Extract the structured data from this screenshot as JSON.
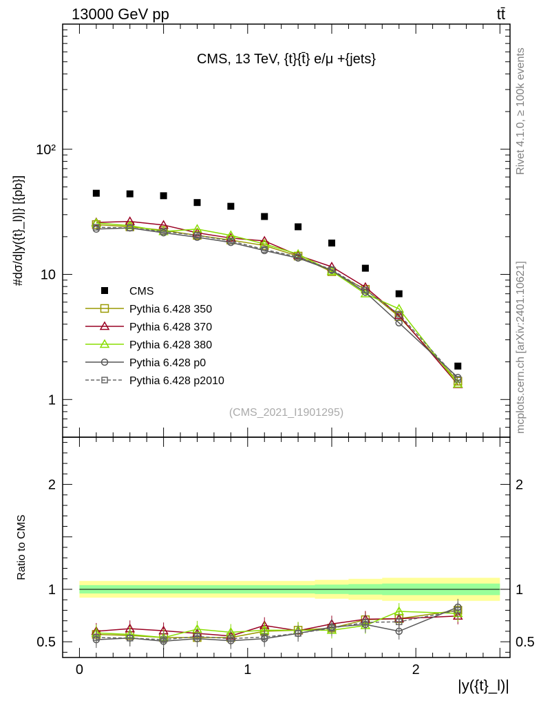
{
  "header": {
    "left": "13000 GeV pp",
    "right": "tt̄"
  },
  "side_labels": {
    "rivet": "Rivet 4.1.0, ≥ 100k events",
    "mcplots": "mcplots.cern.ch [arXiv:2401.10621]"
  },
  "chart_data": [
    {
      "type": "scatter",
      "panel": "main",
      "title": "CMS, 13 TeV, {t}{t̄} e/μ +{jets}",
      "ylabel": "#dσ/d|y({t}_l)|} [{pb}]",
      "yscale": "log",
      "ylim": [
        0.5,
        1000
      ],
      "yticks": [
        {
          "value": 1,
          "label": "1"
        },
        {
          "value": 10,
          "label": "10"
        },
        {
          "value": 100,
          "label": "10²"
        }
      ],
      "xlim": [
        -0.1,
        2.56
      ],
      "watermark": "(CMS_2021_I1901295)",
      "x": [
        0.1,
        0.3,
        0.5,
        0.7,
        0.9,
        1.1,
        1.3,
        1.5,
        1.7,
        1.9,
        2.25
      ],
      "series": [
        {
          "name": "CMS",
          "color": "#000000",
          "marker": "filled-square",
          "values": [
            44.5,
            44.0,
            42.5,
            37.5,
            35.0,
            29.0,
            24.0,
            17.8,
            11.2,
            7.0,
            1.85
          ]
        },
        {
          "name": "Pythia 6.428 350",
          "color": "#999900",
          "marker": "open-square",
          "values": [
            25.0,
            24.0,
            22.5,
            20.5,
            18.8,
            17.0,
            14.0,
            10.5,
            7.6,
            4.6,
            1.4
          ]
        },
        {
          "name": "Pythia 6.428 370",
          "color": "#990022",
          "marker": "open-triangle",
          "values": [
            26.0,
            26.5,
            24.8,
            21.5,
            19.5,
            18.5,
            14.2,
            11.5,
            7.9,
            4.7,
            1.32
          ]
        },
        {
          "name": "Pythia 6.428 380",
          "color": "#88dd00",
          "marker": "open-triangle",
          "values": [
            25.8,
            24.5,
            22.0,
            23.0,
            20.5,
            17.5,
            14.5,
            10.6,
            7.0,
            5.3,
            1.33
          ]
        },
        {
          "name": "Pythia 6.428 p0",
          "color": "#555555",
          "marker": "open-circle",
          "values": [
            23.0,
            23.5,
            21.5,
            19.8,
            18.0,
            15.5,
            13.5,
            10.8,
            7.2,
            4.1,
            1.5
          ]
        },
        {
          "name": "Pythia 6.428 p2010",
          "color": "#666666",
          "marker": "open-square-dashed",
          "values": [
            23.8,
            23.5,
            22.0,
            20.5,
            18.5,
            15.8,
            13.8,
            10.9,
            7.5,
            4.8,
            1.45
          ]
        }
      ]
    },
    {
      "type": "line",
      "panel": "ratio",
      "ylabel": "Ratio to CMS",
      "ylim": [
        0.35,
        2.45
      ],
      "yticks": [
        {
          "value": 0.5,
          "label": "0.5"
        },
        {
          "value": 1,
          "label": "1"
        },
        {
          "value": 2,
          "label": "2"
        }
      ],
      "xlim": [
        -0.1,
        2.56
      ],
      "xticks": [
        {
          "value": 0,
          "label": "0"
        },
        {
          "value": 1,
          "label": "1"
        },
        {
          "value": 2,
          "label": "2"
        }
      ],
      "xlabel": "|y({t}_l)|",
      "bin_edges": [
        0.0,
        0.2,
        0.4,
        0.6,
        0.8,
        1.0,
        1.2,
        1.4,
        1.6,
        1.8,
        2.0,
        2.5
      ],
      "band_inner_halfwidth": [
        0.04,
        0.04,
        0.04,
        0.04,
        0.04,
        0.04,
        0.04,
        0.045,
        0.05,
        0.055,
        0.055
      ],
      "band_outer_halfwidth": [
        0.08,
        0.08,
        0.08,
        0.08,
        0.08,
        0.08,
        0.08,
        0.09,
        0.1,
        0.11,
        0.11
      ],
      "x": [
        0.1,
        0.3,
        0.5,
        0.7,
        0.9,
        1.1,
        1.3,
        1.5,
        1.7,
        1.9,
        2.25
      ],
      "series": [
        {
          "name": "Pythia 6.428 350",
          "color": "#999900",
          "marker": "open-square",
          "values": [
            0.57,
            0.56,
            0.54,
            0.54,
            0.54,
            0.6,
            0.61,
            0.63,
            0.71,
            0.72,
            0.8
          ]
        },
        {
          "name": "Pythia 6.428 370",
          "color": "#990022",
          "marker": "open-triangle",
          "values": [
            0.6,
            0.625,
            0.605,
            0.58,
            0.555,
            0.655,
            0.605,
            0.67,
            0.715,
            0.72,
            0.745
          ]
        },
        {
          "name": "Pythia 6.428 380",
          "color": "#88dd00",
          "marker": "open-triangle",
          "values": [
            0.585,
            0.57,
            0.54,
            0.62,
            0.59,
            0.61,
            0.61,
            0.61,
            0.655,
            0.79,
            0.77
          ]
        },
        {
          "name": "Pythia 6.428 p0",
          "color": "#555555",
          "marker": "open-circle",
          "values": [
            0.52,
            0.535,
            0.505,
            0.53,
            0.51,
            0.53,
            0.58,
            0.64,
            0.665,
            0.6,
            0.83
          ]
        },
        {
          "name": "Pythia 6.428 p2010",
          "color": "#666666",
          "marker": "open-square-dashed",
          "values": [
            0.54,
            0.535,
            0.52,
            0.55,
            0.53,
            0.545,
            0.58,
            0.63,
            0.685,
            0.69,
            0.8
          ]
        }
      ]
    }
  ]
}
